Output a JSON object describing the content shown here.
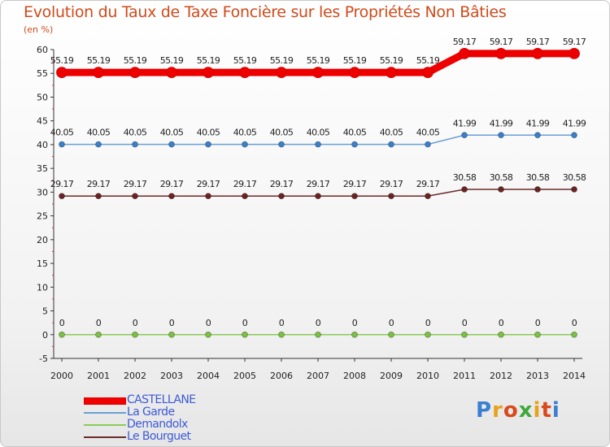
{
  "header": {
    "title": "Evolution du Taux de Taxe Foncière sur les Propriétés Non Bâties",
    "unit": "(en %)"
  },
  "logo": {
    "text": "Proxiti",
    "colors": [
      "#3a7fd0",
      "#e8a21a",
      "#d84a1e",
      "#3ea83a",
      "#e8a21a",
      "#d84a1e",
      "#3a7fd0"
    ]
  },
  "chart_data": {
    "type": "line",
    "title": "Evolution du Taux de Taxe Foncière sur les Propriétés Non Bâties",
    "ylabel": "(en %)",
    "xlabel": "",
    "x": [
      "2000",
      "2001",
      "2002",
      "2003",
      "2004",
      "2005",
      "2006",
      "2007",
      "2008",
      "2009",
      "2010",
      "2011",
      "2012",
      "2013",
      "2014"
    ],
    "ylim": [
      -5,
      60
    ],
    "yticks": [
      -5,
      0,
      5,
      10,
      15,
      20,
      25,
      30,
      35,
      40,
      45,
      50,
      55,
      60
    ],
    "grid": false,
    "legend_position": "bottom-left",
    "series": [
      {
        "name": "CASTELLANE",
        "color": "#ee0000",
        "marker": "#ee0000",
        "thick": true,
        "values": [
          55.19,
          55.19,
          55.19,
          55.19,
          55.19,
          55.19,
          55.19,
          55.19,
          55.19,
          55.19,
          55.19,
          59.17,
          59.17,
          59.17,
          59.17
        ],
        "labels": [
          "55.19",
          "55.19",
          "55.19",
          "55.19",
          "55.19",
          "55.19",
          "55.19",
          "55.19",
          "55.19",
          "55.19",
          "55.19",
          "59.17",
          "59.17",
          "59.17",
          "59.17"
        ]
      },
      {
        "name": "La Garde",
        "color": "#6a9fd4",
        "marker": "#3a7fc8",
        "thick": false,
        "values": [
          40.05,
          40.05,
          40.05,
          40.05,
          40.05,
          40.05,
          40.05,
          40.05,
          40.05,
          40.05,
          40.05,
          41.99,
          41.99,
          41.99,
          41.99
        ],
        "labels": [
          "40.05",
          "40.05",
          "40.05",
          "40.05",
          "40.05",
          "40.05",
          "40.05",
          "40.05",
          "40.05",
          "40.05",
          "40.05",
          "41.99",
          "41.99",
          "41.99",
          "41.99"
        ]
      },
      {
        "name": "Demandolx",
        "color": "#88cc55",
        "marker": "#7ac043",
        "thick": false,
        "values": [
          0,
          0,
          0,
          0,
          0,
          0,
          0,
          0,
          0,
          0,
          0,
          0,
          0,
          0,
          0
        ],
        "labels": [
          "0",
          "0",
          "0",
          "0",
          "0",
          "0",
          "0",
          "0",
          "0",
          "0",
          "0",
          "0",
          "0",
          "0",
          "0"
        ]
      },
      {
        "name": "Le Bourguet",
        "color": "#6b2a2a",
        "marker": "#6b2222",
        "thick": false,
        "values": [
          29.17,
          29.17,
          29.17,
          29.17,
          29.17,
          29.17,
          29.17,
          29.17,
          29.17,
          29.17,
          29.17,
          30.58,
          30.58,
          30.58,
          30.58
        ],
        "labels": [
          "29.17",
          "29.17",
          "29.17",
          "29.17",
          "29.17",
          "29.17",
          "29.17",
          "29.17",
          "29.17",
          "29.17",
          "29.17",
          "30.58",
          "30.58",
          "30.58",
          "30.58"
        ]
      }
    ]
  }
}
